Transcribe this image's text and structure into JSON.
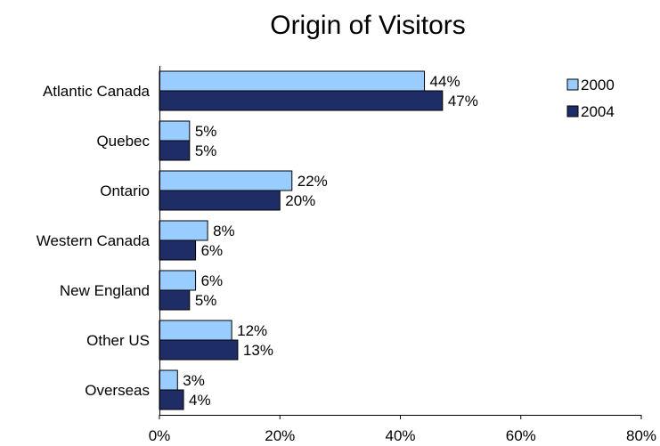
{
  "chart_data": {
    "type": "bar",
    "orientation": "horizontal",
    "title": "Origin of Visitors",
    "xlabel": "",
    "ylabel": "",
    "categories": [
      "Atlantic Canada",
      "Quebec",
      "Ontario",
      "Western Canada",
      "New England",
      "Other US",
      "Overseas"
    ],
    "series": [
      {
        "name": "2000",
        "values": [
          44,
          5,
          22,
          8,
          6,
          12,
          3
        ],
        "labels": [
          "44%",
          "5%",
          "22%",
          "8%",
          "6%",
          "12%",
          "3%"
        ],
        "color": "#99ccff"
      },
      {
        "name": "2004",
        "values": [
          47,
          5,
          20,
          6,
          5,
          13,
          4
        ],
        "labels": [
          "47%",
          "5%",
          "20%",
          "6%",
          "5%",
          "13%",
          "4%"
        ],
        "color": "#1f2d66"
      }
    ],
    "xlim": [
      0,
      80
    ],
    "xticks": [
      "0%",
      "20%",
      "40%",
      "60%",
      "80%"
    ],
    "xtick_values": [
      0,
      20,
      40,
      60,
      80
    ],
    "grid": false,
    "legend_position": "top-right"
  }
}
